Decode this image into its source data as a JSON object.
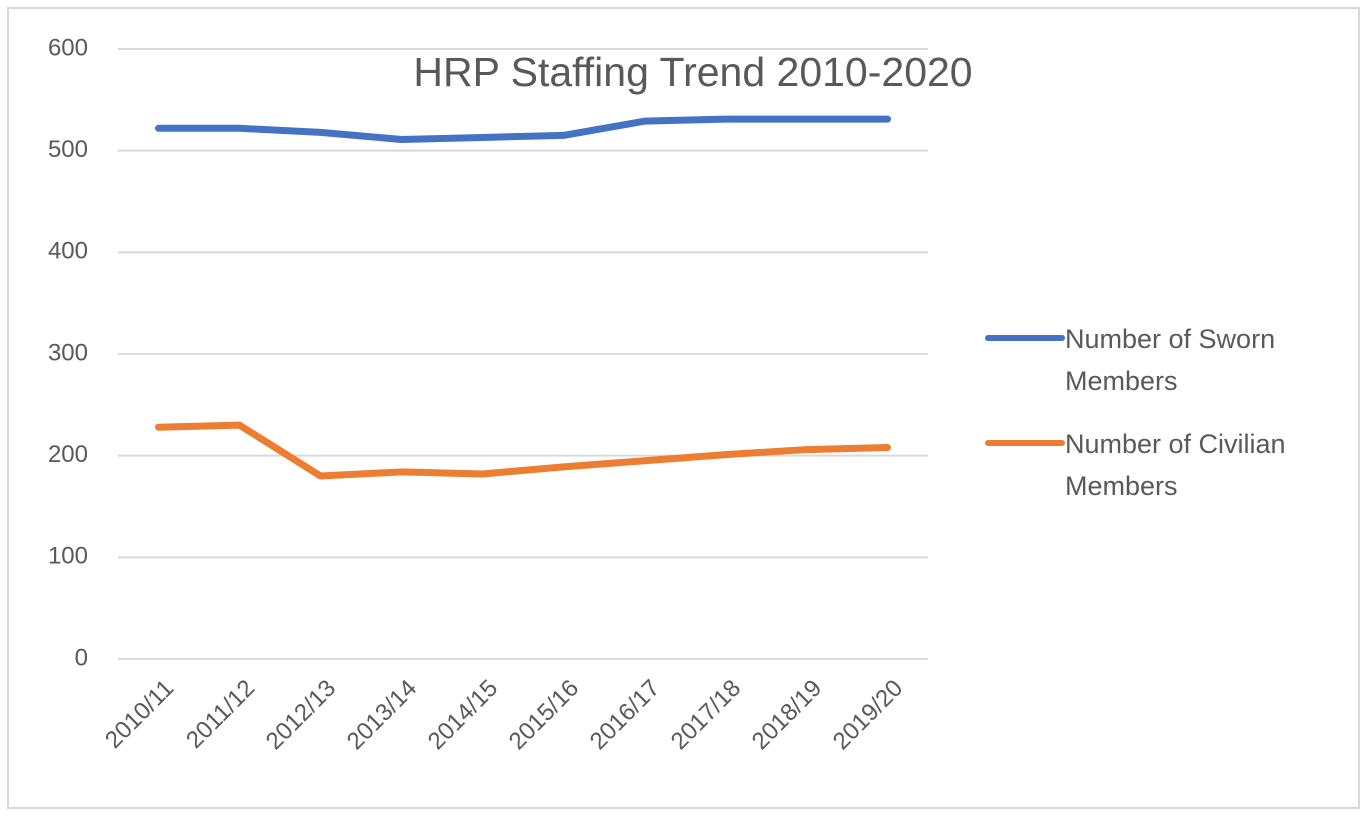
{
  "chart_data": {
    "type": "line",
    "title": "HRP Staffing Trend 2010-2020",
    "categories": [
      "2010/11",
      "2011/12",
      "2012/13",
      "2013/14",
      "2014/15",
      "2015/16",
      "2016/17",
      "2017/18",
      "2018/19",
      "2019/20"
    ],
    "series": [
      {
        "name": "Number of Sworn Members",
        "color": "#4472c4",
        "values": [
          522,
          522,
          518,
          511,
          513,
          515,
          529,
          531,
          531,
          531
        ]
      },
      {
        "name": "Number of Civilian Members",
        "color": "#ed7d31",
        "values": [
          228,
          230,
          180,
          184,
          182,
          189,
          195,
          201,
          206,
          208
        ]
      }
    ],
    "ylim": [
      0,
      600
    ],
    "yticks": [
      0,
      100,
      200,
      300,
      400,
      500,
      600
    ],
    "grid": true,
    "legend": "right"
  }
}
